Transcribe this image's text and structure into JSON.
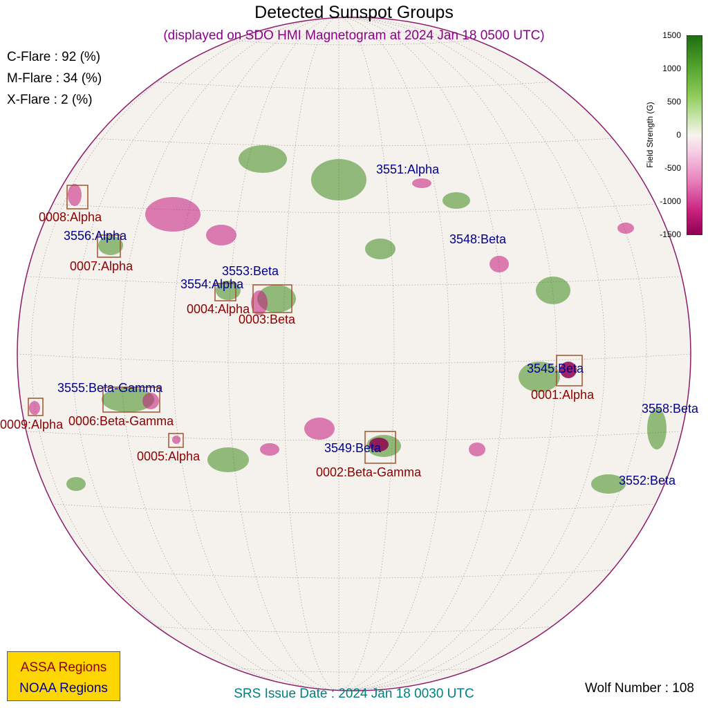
{
  "title": "Detected Sunspot Groups",
  "subtitle": "(displayed on SDO HMI Magnetogram at 2024 Jan 18 0500 UTC)",
  "flares": [
    {
      "label": "C-Flare : 92 (%)"
    },
    {
      "label": "M-Flare : 34 (%)"
    },
    {
      "label": "X-Flare :  2 (%)"
    }
  ],
  "colorbar": {
    "label": "Field Strength (G)",
    "ticks": [
      "1500",
      "1000",
      "500",
      "0",
      "-500",
      "-1000",
      "-1500"
    ]
  },
  "noaa_regions": [
    {
      "label": "3551:Alpha"
    },
    {
      "label": "3556:Alpha"
    },
    {
      "label": "3548:Beta"
    },
    {
      "label": "3553:Beta"
    },
    {
      "label": "3554:Alpha"
    },
    {
      "label": "3545:Beta"
    },
    {
      "label": "3555:Beta-Gamma"
    },
    {
      "label": "3558:Beta"
    },
    {
      "label": "3549:Beta"
    },
    {
      "label": "3552:Beta"
    }
  ],
  "assa_regions": [
    {
      "label": "0008:Alpha"
    },
    {
      "label": "0007:Alpha"
    },
    {
      "label": "0004:Alpha"
    },
    {
      "label": "0003:Beta"
    },
    {
      "label": "0001:Alpha"
    },
    {
      "label": "0006:Beta-Gamma"
    },
    {
      "label": "0009:Alpha"
    },
    {
      "label": "0005:Alpha"
    },
    {
      "label": "0002:Beta-Gamma"
    }
  ],
  "legend": {
    "assa": "ASSA Regions",
    "noaa": "NOAA Regions"
  },
  "srs": "SRS Issue Date : 2024 Jan 18 0030 UTC",
  "wolf": "Wolf Number : 108",
  "colors": {
    "noaa": "#00008b",
    "assa": "#8b0000",
    "positive": "#2e7d12",
    "negative": "#b5006e"
  }
}
